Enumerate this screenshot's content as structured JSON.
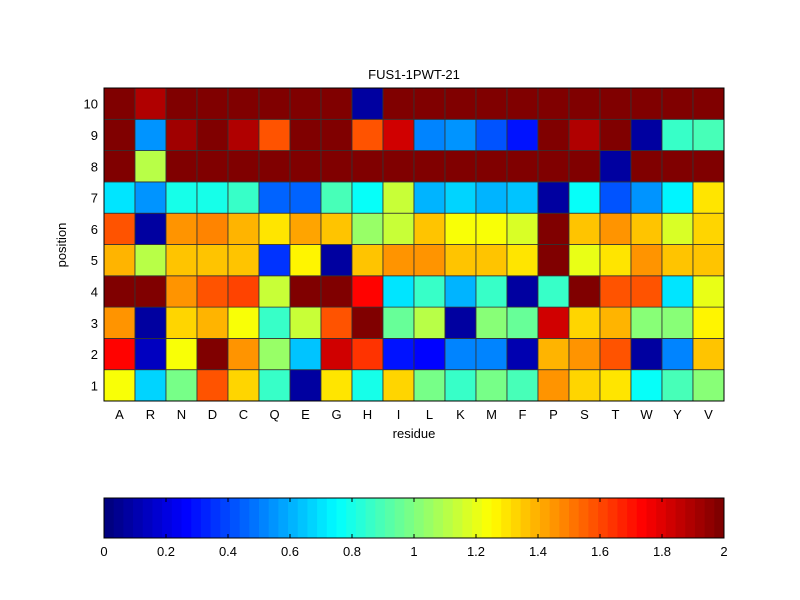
{
  "chart_data": {
    "type": "heatmap",
    "title": "FUS1-1PWT-21",
    "xlabel": "residue",
    "ylabel": "position",
    "x_categories": [
      "A",
      "R",
      "N",
      "D",
      "C",
      "Q",
      "E",
      "G",
      "H",
      "I",
      "L",
      "K",
      "M",
      "F",
      "P",
      "S",
      "T",
      "W",
      "Y",
      "V"
    ],
    "y_categories": [
      "1",
      "2",
      "3",
      "4",
      "5",
      "6",
      "7",
      "8",
      "9",
      "10"
    ],
    "colormap": "jet",
    "clim": [
      0,
      2
    ],
    "colorbar": {
      "placement": "bottom",
      "ticks": [
        "0",
        "0.2",
        "0.4",
        "0.6",
        "0.8",
        "1",
        "1.2",
        "1.4",
        "1.6",
        "1.8",
        "2"
      ]
    },
    "values_by_position": {
      "1": [
        1.25,
        0.68,
        0.98,
        1.6,
        1.32,
        0.85,
        0.05,
        1.3,
        0.78,
        1.32,
        0.98,
        0.85,
        0.98,
        0.9,
        1.45,
        1.32,
        1.3,
        0.75,
        0.9,
        1.0
      ],
      "2": [
        1.75,
        0.12,
        1.25,
        2.0,
        1.45,
        1.05,
        0.65,
        1.85,
        1.65,
        0.3,
        0.25,
        0.5,
        0.5,
        0.1,
        1.4,
        1.45,
        1.6,
        0.05,
        0.5,
        1.35
      ],
      "3": [
        1.45,
        0.05,
        1.32,
        1.4,
        1.25,
        0.85,
        1.15,
        1.6,
        2.0,
        0.95,
        1.12,
        0.05,
        1.0,
        0.95,
        1.85,
        1.32,
        1.4,
        1.0,
        1.0,
        1.28
      ],
      "4": [
        2.0,
        2.0,
        1.45,
        1.6,
        1.62,
        1.15,
        2.0,
        2.0,
        1.75,
        0.7,
        0.85,
        0.6,
        0.85,
        0.05,
        0.85,
        2.0,
        1.58,
        1.6,
        0.7,
        1.2
      ],
      "5": [
        1.4,
        1.12,
        1.35,
        1.38,
        1.35,
        0.35,
        1.28,
        0.05,
        1.38,
        1.45,
        1.45,
        1.35,
        1.38,
        1.3,
        2.0,
        1.2,
        1.3,
        1.45,
        1.35,
        1.38
      ],
      "6": [
        1.6,
        0.05,
        1.45,
        1.5,
        1.4,
        1.3,
        1.42,
        1.38,
        1.05,
        1.15,
        1.35,
        1.25,
        1.25,
        1.18,
        2.0,
        1.38,
        1.45,
        1.35,
        1.18,
        1.33
      ],
      "7": [
        0.7,
        0.55,
        0.78,
        0.78,
        0.85,
        0.45,
        0.45,
        0.9,
        0.75,
        1.15,
        0.6,
        0.68,
        0.6,
        0.62,
        0.05,
        0.75,
        0.4,
        0.55,
        0.72,
        1.3
      ],
      "8": [
        2.0,
        1.1,
        2.0,
        2.0,
        2.0,
        2.0,
        2.0,
        2.0,
        2.0,
        2.0,
        2.0,
        2.0,
        2.0,
        2.0,
        2.0,
        2.0,
        0.05,
        2.0,
        2.0,
        2.0
      ],
      "9": [
        2.0,
        0.55,
        1.95,
        2.0,
        1.9,
        1.6,
        2.0,
        2.0,
        1.6,
        1.85,
        0.5,
        0.55,
        0.4,
        0.3,
        2.0,
        1.9,
        2.0,
        0.05,
        0.85,
        0.9
      ],
      "10": [
        2.0,
        1.9,
        2.0,
        2.0,
        2.0,
        2.0,
        2.0,
        2.0,
        0.05,
        2.0,
        2.0,
        2.0,
        2.0,
        2.0,
        2.0,
        2.0,
        2.0,
        2.0,
        2.0,
        2.0
      ]
    }
  }
}
